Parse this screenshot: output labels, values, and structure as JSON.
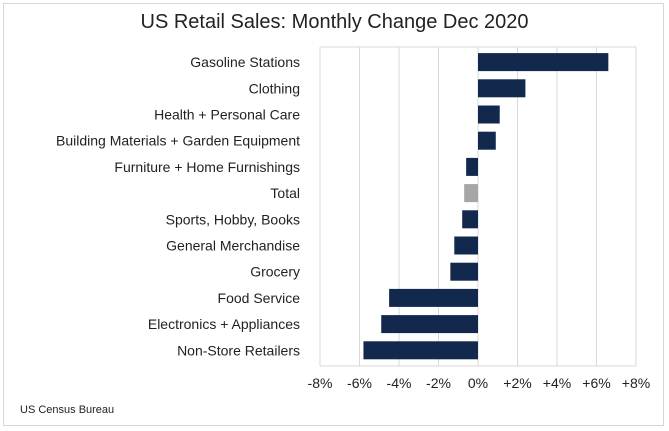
{
  "chart_data": {
    "type": "bar",
    "orientation": "horizontal",
    "title": "US Retail Sales: Monthly Change Dec 2020",
    "source": "US Census Bureau",
    "categories": [
      "Gasoline Stations",
      "Clothing",
      "Health + Personal Care",
      "Building Materials + Garden Equipment",
      "Furniture + Home Furnishings",
      "Total",
      "Sports, Hobby, Books",
      "General Merchandise",
      "Grocery",
      "Food Service",
      "Electronics + Appliances",
      "Non-Store Retailers"
    ],
    "values": [
      6.6,
      2.4,
      1.1,
      0.9,
      -0.6,
      -0.7,
      -0.8,
      -1.2,
      -1.4,
      -4.5,
      -4.9,
      -5.8
    ],
    "xlim": [
      -8,
      8
    ],
    "xticks": [
      "-8%",
      "-6%",
      "-4%",
      "-2%",
      "0%",
      "+2%",
      "+4%",
      "+6%",
      "+8%"
    ],
    "grid": true,
    "colors": {
      "bar": "#12284c",
      "total_bar": "#a6a6a6",
      "grid": "#d9d9d9"
    }
  }
}
